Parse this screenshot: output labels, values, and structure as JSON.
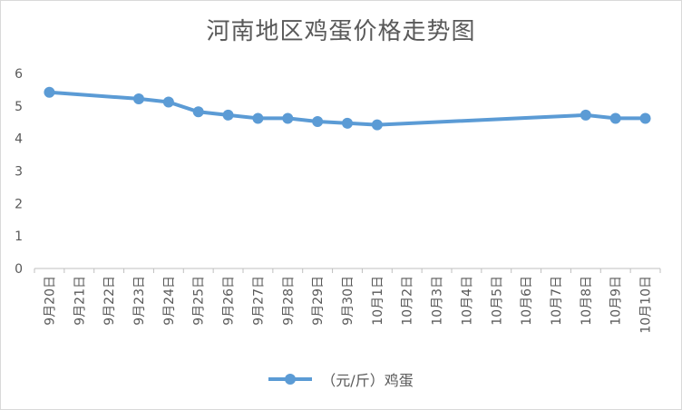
{
  "chart_data": {
    "type": "line",
    "title": "河南地区鸡蛋价格走势图",
    "xlabel": "",
    "ylabel": "",
    "ylim": [
      0,
      6
    ],
    "yticks": [
      0,
      1,
      2,
      3,
      4,
      5,
      6
    ],
    "categories": [
      "9月20日",
      "9月21日",
      "9月22日",
      "9月23日",
      "9月24日",
      "9月25日",
      "9月26日",
      "9月27日",
      "9月28日",
      "9月29日",
      "9月30日",
      "10月1日",
      "10月2日",
      "10月3日",
      "10月4日",
      "10月5日",
      "10月6日",
      "10月7日",
      "10月8日",
      "10月9日",
      "10月10日"
    ],
    "series": [
      {
        "name": "（元/斤）鸡蛋",
        "color": "#5B9BD5",
        "values": [
          5.42,
          null,
          null,
          5.22,
          5.12,
          4.82,
          4.72,
          4.62,
          4.62,
          4.52,
          4.47,
          4.42,
          null,
          null,
          null,
          null,
          null,
          null,
          4.72,
          4.62,
          4.62
        ]
      }
    ],
    "grid": false,
    "legend_position": "bottom"
  }
}
